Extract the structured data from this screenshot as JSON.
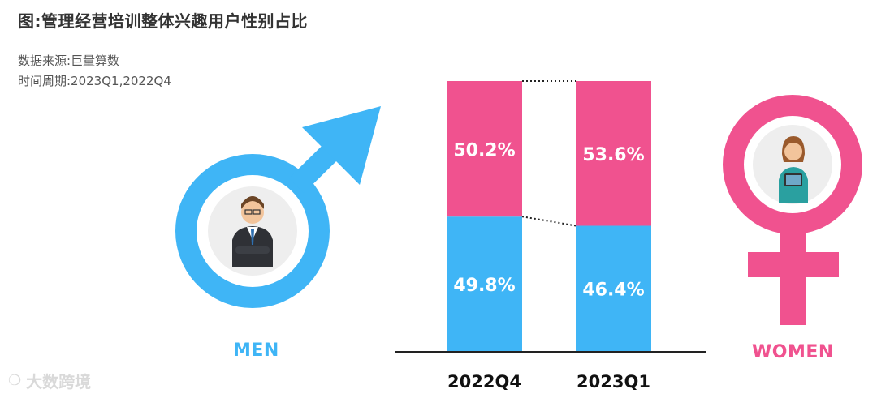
{
  "title": "图:管理经营培训整体兴趣用户性别占比",
  "source": "数据来源:巨量算数",
  "period": "时间周期:2023Q1,2022Q4",
  "men_label": "MEN",
  "women_label": "WOMEN",
  "watermark": "大数跨境",
  "colors": {
    "men": "#3fb5f6",
    "women": "#f0528f",
    "axis": "#222222",
    "label": "#ffffff"
  },
  "chart_data": {
    "type": "bar",
    "stacked": true,
    "percent": true,
    "categories": [
      "2022Q4",
      "2023Q1"
    ],
    "series": [
      {
        "name": "MEN",
        "values": [
          49.8,
          46.4
        ],
        "labels": [
          "49.8%",
          "46.4%"
        ]
      },
      {
        "name": "WOMEN",
        "values": [
          50.2,
          53.6
        ],
        "labels": [
          "50.2%",
          "53.6%"
        ]
      }
    ],
    "ylim": [
      0,
      100
    ],
    "title": "图:管理经营培训整体兴趣用户性别占比",
    "xlabel": "",
    "ylabel": "",
    "grid": false,
    "legend": "none"
  }
}
